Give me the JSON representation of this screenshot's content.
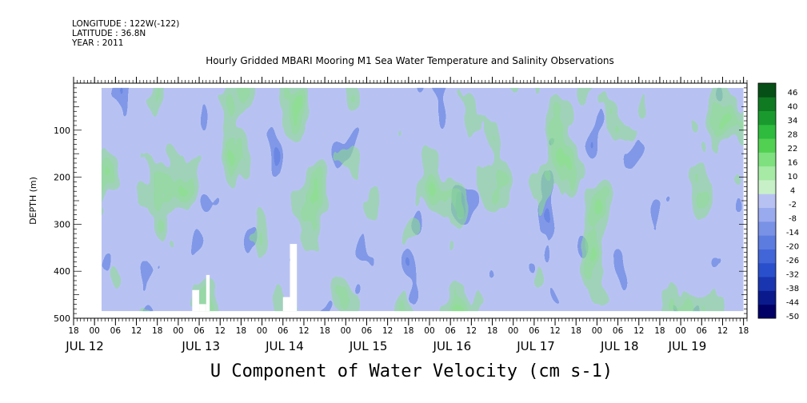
{
  "header": {
    "longitude": "LONGITUDE : 122W(-122)",
    "latitude": "LATITUDE : 36.8N",
    "year": "YEAR : 2011"
  },
  "chart_data": {
    "type": "heatmap",
    "title": "Hourly Gridded MBARI Mooring M1 Sea Water Temperature and Salinity Observations",
    "xlabel": "U Component of Water Velocity (cm s-1)",
    "ylabel": "DEPTH (m)",
    "x_range": [
      "2011-07-11 18:00",
      "2011-07-19 19:00"
    ],
    "data_x_range": [
      "2011-07-12 02:00",
      "2011-07-19 18:00"
    ],
    "ylim": [
      500,
      0
    ],
    "depth_range": [
      10,
      485
    ],
    "y_ticks": [
      100,
      200,
      300,
      400,
      500
    ],
    "hour_ticks": [
      "18",
      "00",
      "06",
      "12",
      "18",
      "00",
      "06",
      "12",
      "18",
      "00",
      "06",
      "12",
      "18",
      "00",
      "06",
      "12",
      "18",
      "00",
      "06",
      "12",
      "18",
      "00",
      "06",
      "12",
      "18",
      "00",
      "06",
      "12",
      "18",
      "00",
      "06",
      "12",
      "18"
    ],
    "day_labels": [
      "JUL 12",
      "JUL 13",
      "JUL 14",
      "JUL 15",
      "JUL 16",
      "JUL 17",
      "JUL 18",
      "JUL 19"
    ],
    "colorbar": {
      "levels": [
        -50,
        -44,
        -38,
        -32,
        -26,
        -20,
        -14,
        -8,
        -2,
        4,
        10,
        16,
        22,
        28,
        34,
        40,
        46
      ],
      "labels": [
        "46",
        "40",
        "34",
        "28",
        "22",
        "16",
        "10",
        "4",
        "-2",
        "-8",
        "-14",
        "-20",
        "-26",
        "-32",
        "-38",
        "-44",
        "-50"
      ],
      "colors": [
        "#000066",
        "#0a1a8c",
        "#1a35b0",
        "#2a4fcc",
        "#4266d8",
        "#5c7ce0",
        "#7a92e6",
        "#9aaaee",
        "#b8c2f2",
        "#c8f0c8",
        "#a6eaa6",
        "#7ee07e",
        "#52d052",
        "#2ebb3e",
        "#1a9a2e",
        "#0f7a22",
        "#064f16"
      ]
    },
    "missing_regions": "left of 2011-07-12 02:00; columns near 2011-07-13 04:00-08:00 below ~430 m; near 2011-07-14 06:00-10:00 below ~340-450 m",
    "grid": false
  }
}
